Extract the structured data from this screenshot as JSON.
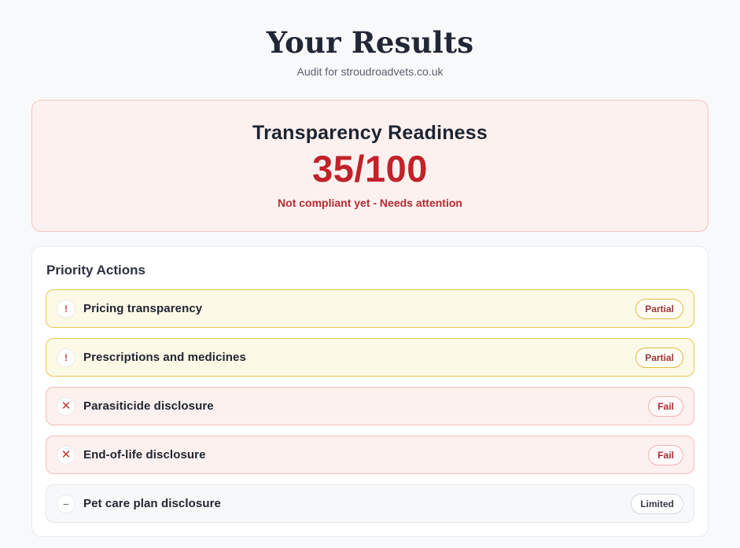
{
  "page": {
    "title": "Your Results",
    "subtitle": "Audit for stroudroadvets.co.uk"
  },
  "score_card": {
    "heading": "Transparency Readiness",
    "score": "35/100",
    "status_message": "Not compliant yet - Needs attention",
    "colors": {
      "background": "#fdf1ef",
      "border": "#f5c5c1",
      "score_text": "#c2222a",
      "status_text": "#b42b31"
    }
  },
  "priority_actions": {
    "heading": "Priority Actions",
    "items": [
      {
        "label": "Pricing transparency",
        "badge": "Partial",
        "status": "partial",
        "icon": "exclamation-icon",
        "icon_glyph": "!"
      },
      {
        "label": "Prescriptions and medicines",
        "badge": "Partial",
        "status": "partial",
        "icon": "exclamation-icon",
        "icon_glyph": "!"
      },
      {
        "label": "Parasiticide disclosure",
        "badge": "Fail",
        "status": "fail",
        "icon": "x-icon",
        "icon_glyph": "✕"
      },
      {
        "label": "End-of-life disclosure",
        "badge": "Fail",
        "status": "fail",
        "icon": "x-icon",
        "icon_glyph": "✕"
      },
      {
        "label": "Pet care plan disclosure",
        "badge": "Limited",
        "status": "limited",
        "icon": "minus-icon",
        "icon_glyph": "−"
      }
    ],
    "status_colors": {
      "partial": {
        "background": "#fdf9e7",
        "border": "#e8c84f"
      },
      "fail": {
        "background": "#fdf1f0",
        "border": "#f4bdbb"
      },
      "limited": {
        "background": "#f7f8f9",
        "border": "#e4e7eb"
      }
    }
  }
}
